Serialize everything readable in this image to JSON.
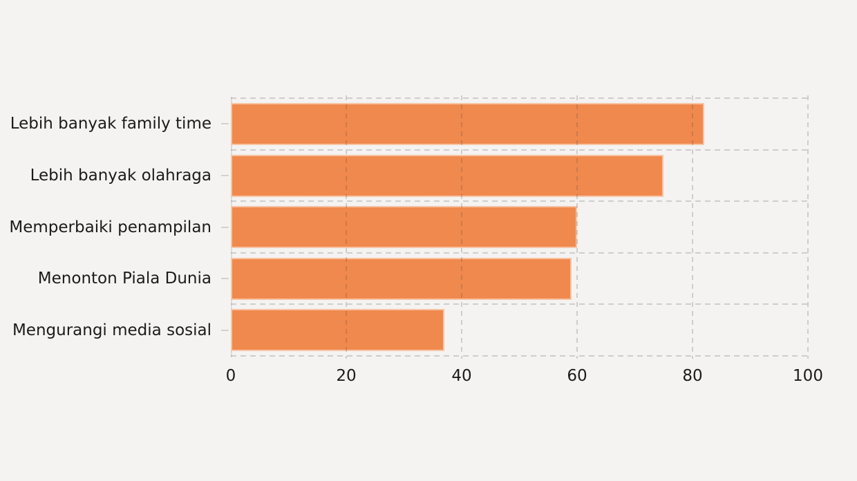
{
  "chart_data": {
    "type": "bar",
    "orientation": "horizontal",
    "title": "",
    "xlabel": "",
    "ylabel": "",
    "categories": [
      "Lebih banyak family time",
      "Lebih banyak olahraga",
      "Memperbaiki penampilan",
      "Menonton Piala Dunia",
      "Mengurangi media sosial"
    ],
    "values": [
      82,
      75,
      60,
      59,
      37
    ],
    "xlim": [
      0,
      100
    ],
    "x_ticks": [
      "0",
      "20",
      "40",
      "60",
      "80",
      "100"
    ],
    "grid": "dashed-vertical-and-horizontal-band-lines",
    "legend_position": "none",
    "colors": {
      "bar": "#F0894D",
      "background": "#f4f3f2",
      "gridline": "#cfcecd",
      "axis_spine": "#dcdbda",
      "tick_mark": "#d2d2d2",
      "text": "#1b1b1b"
    }
  }
}
